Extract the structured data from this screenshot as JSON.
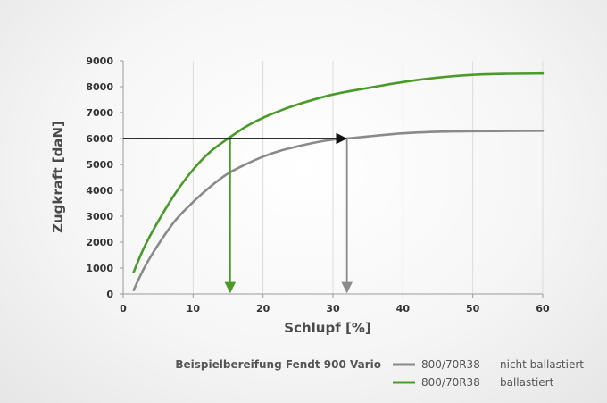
{
  "chart_data": {
    "type": "line",
    "xlabel": "Schlupf [%]",
    "ylabel": "Zugkraft [daN]",
    "xlim": [
      0,
      60
    ],
    "ylim": [
      0,
      9000
    ],
    "x_ticks": [
      0,
      10,
      20,
      30,
      40,
      50,
      60
    ],
    "y_ticks": [
      0,
      1000,
      2000,
      3000,
      4000,
      5000,
      6000,
      7000,
      8000,
      9000
    ],
    "grid": "vertical",
    "legend_heading": "Beispielbereifung Fendt 900 Vario",
    "legend_position": "bottom-right",
    "series": [
      {
        "name": "800/70R38",
        "status": "nicht ballastiert",
        "color": "#8a8a8a",
        "x": [
          1.5,
          3,
          5,
          7.5,
          10,
          12.5,
          15,
          17.5,
          20,
          22.5,
          25,
          27.5,
          30,
          32,
          35,
          40,
          45,
          50,
          55,
          60
        ],
        "y": [
          150,
          1000,
          1900,
          2850,
          3550,
          4150,
          4650,
          5000,
          5300,
          5530,
          5700,
          5850,
          5960,
          6000,
          6080,
          6200,
          6260,
          6280,
          6290,
          6300
        ]
      },
      {
        "name": "800/70R38",
        "status": "ballastiert",
        "color": "#4a9a2a",
        "x": [
          1.5,
          3,
          5,
          7.5,
          10,
          12.5,
          15,
          17.5,
          20,
          22.5,
          25,
          30,
          35,
          40,
          45,
          50,
          55,
          60
        ],
        "y": [
          850,
          1800,
          2800,
          3900,
          4800,
          5500,
          6000,
          6450,
          6800,
          7080,
          7320,
          7700,
          7950,
          8180,
          8350,
          8460,
          8500,
          8510
        ]
      }
    ],
    "annotations": [
      {
        "kind": "reference",
        "y": 6000,
        "x_from": 0,
        "x_to": 32,
        "color": "#111111"
      },
      {
        "kind": "drop",
        "x": 15.3,
        "y_from": 6000,
        "y_to": 0,
        "color": "#4a9a2a"
      },
      {
        "kind": "drop",
        "x": 32,
        "y_from": 6000,
        "y_to": 0,
        "color": "#8a8a8a"
      }
    ]
  }
}
